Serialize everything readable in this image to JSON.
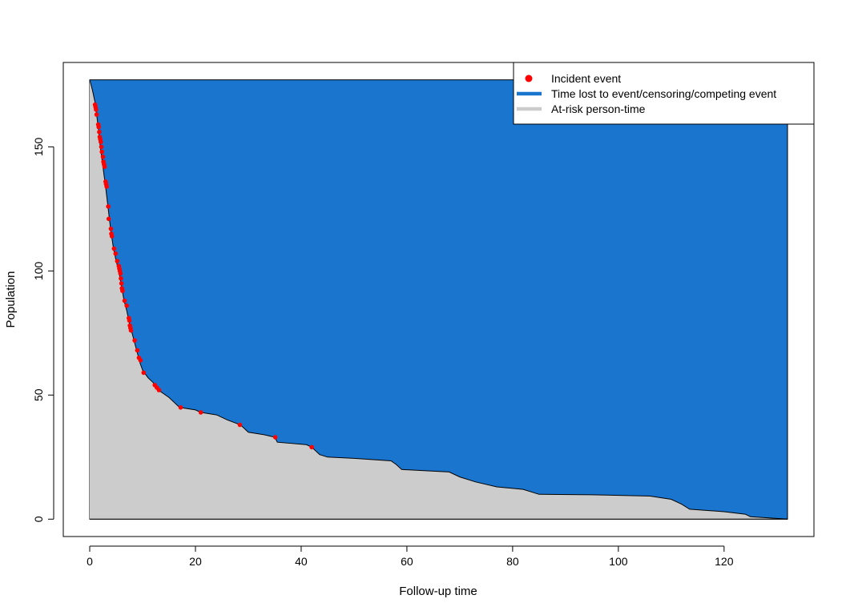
{
  "chart_data": {
    "type": "area",
    "title": "",
    "xlabel": "Follow-up time",
    "ylabel": "Population",
    "xlim": [
      -5,
      137
    ],
    "ylim": [
      -7,
      184
    ],
    "x_ticks": [
      "0",
      "20",
      "40",
      "60",
      "80",
      "100",
      "120"
    ],
    "y_ticks": [
      "0",
      "50",
      "100",
      "150"
    ],
    "grid": false,
    "legend_position": "top-right",
    "legend": [
      {
        "label": "Incident event",
        "type": "point",
        "color": "#ff0000"
      },
      {
        "label": "Time lost to event/censoring/competing event",
        "type": "line",
        "color": "#1a75cf"
      },
      {
        "label": "At-risk person-time",
        "type": "line",
        "color": "#cccccc"
      }
    ],
    "total_population": 177,
    "max_followup": 132,
    "series": [
      {
        "name": "At-risk person-time",
        "color": "#cccccc",
        "points": [
          [
            0,
            177
          ],
          [
            0.5,
            173
          ],
          [
            1.0,
            168
          ],
          [
            1.3,
            163
          ],
          [
            1.6,
            158
          ],
          [
            2.0,
            150
          ],
          [
            2.5,
            142
          ],
          [
            3.0,
            134
          ],
          [
            3.5,
            125
          ],
          [
            4.0,
            116
          ],
          [
            4.5,
            109
          ],
          [
            5.0,
            104
          ],
          [
            5.5,
            100
          ],
          [
            6.0,
            94
          ],
          [
            6.5,
            88
          ],
          [
            7.0,
            84
          ],
          [
            7.5,
            79
          ],
          [
            8.0,
            75
          ],
          [
            8.5,
            71
          ],
          [
            9.0,
            67
          ],
          [
            9.5,
            63
          ],
          [
            10.0,
            60
          ],
          [
            11.0,
            57
          ],
          [
            12.0,
            55
          ],
          [
            13.0,
            52
          ],
          [
            15.0,
            49
          ],
          [
            16.5,
            46
          ],
          [
            17.0,
            45
          ],
          [
            20.0,
            44
          ],
          [
            21.0,
            43
          ],
          [
            24.0,
            42
          ],
          [
            26.0,
            40
          ],
          [
            28.5,
            38
          ],
          [
            30.0,
            35
          ],
          [
            33.0,
            34
          ],
          [
            35.0,
            33
          ],
          [
            35.5,
            31
          ],
          [
            41.0,
            30
          ],
          [
            42.0,
            29
          ],
          [
            43.5,
            26
          ],
          [
            45.0,
            25
          ],
          [
            50.0,
            24.5
          ],
          [
            57.0,
            23.5
          ],
          [
            58.0,
            22
          ],
          [
            59.0,
            20
          ],
          [
            68.0,
            19
          ],
          [
            70.0,
            17
          ],
          [
            73.0,
            15
          ],
          [
            77.0,
            13
          ],
          [
            82.0,
            12
          ],
          [
            85.0,
            10
          ],
          [
            95.0,
            9.8
          ],
          [
            106.0,
            9.3
          ],
          [
            110.0,
            8
          ],
          [
            112.0,
            6
          ],
          [
            113.5,
            4
          ],
          [
            120.0,
            3
          ],
          [
            124.0,
            2
          ],
          [
            125.0,
            1
          ],
          [
            132.0,
            0
          ]
        ]
      },
      {
        "name": "Time lost to event/censoring/competing event",
        "color": "#1a75cf",
        "points": [
          [
            0,
            177
          ],
          [
            132,
            177
          ],
          [
            132,
            0
          ]
        ]
      }
    ],
    "incident_events": [
      [
        1.0,
        167
      ],
      [
        1.1,
        166
      ],
      [
        1.2,
        165
      ],
      [
        1.3,
        163
      ],
      [
        1.6,
        159
      ],
      [
        1.7,
        158
      ],
      [
        1.8,
        156
      ],
      [
        1.9,
        154
      ],
      [
        2.0,
        153
      ],
      [
        2.1,
        152
      ],
      [
        2.2,
        150
      ],
      [
        2.3,
        148
      ],
      [
        2.5,
        146
      ],
      [
        2.6,
        144
      ],
      [
        2.7,
        143
      ],
      [
        2.8,
        142
      ],
      [
        3.0,
        136
      ],
      [
        3.1,
        135
      ],
      [
        3.2,
        134
      ],
      [
        3.5,
        126
      ],
      [
        3.6,
        121
      ],
      [
        4.0,
        117
      ],
      [
        4.1,
        115
      ],
      [
        4.2,
        114
      ],
      [
        4.6,
        109
      ],
      [
        4.9,
        107
      ],
      [
        5.2,
        104
      ],
      [
        5.5,
        102
      ],
      [
        5.6,
        101
      ],
      [
        5.7,
        100
      ],
      [
        5.8,
        99
      ],
      [
        5.9,
        97
      ],
      [
        6.0,
        95
      ],
      [
        6.1,
        93
      ],
      [
        6.2,
        92
      ],
      [
        6.6,
        88
      ],
      [
        7.0,
        86
      ],
      [
        7.4,
        81
      ],
      [
        7.5,
        80
      ],
      [
        7.6,
        78
      ],
      [
        7.7,
        77
      ],
      [
        7.8,
        76
      ],
      [
        8.5,
        72
      ],
      [
        9.0,
        68
      ],
      [
        9.3,
        65
      ],
      [
        9.6,
        64
      ],
      [
        10.2,
        59
      ],
      [
        12.3,
        54
      ],
      [
        12.7,
        53
      ],
      [
        13.1,
        52
      ],
      [
        17.2,
        45
      ],
      [
        21.0,
        43
      ],
      [
        28.4,
        38
      ],
      [
        35.1,
        33
      ],
      [
        42.0,
        29
      ]
    ]
  }
}
